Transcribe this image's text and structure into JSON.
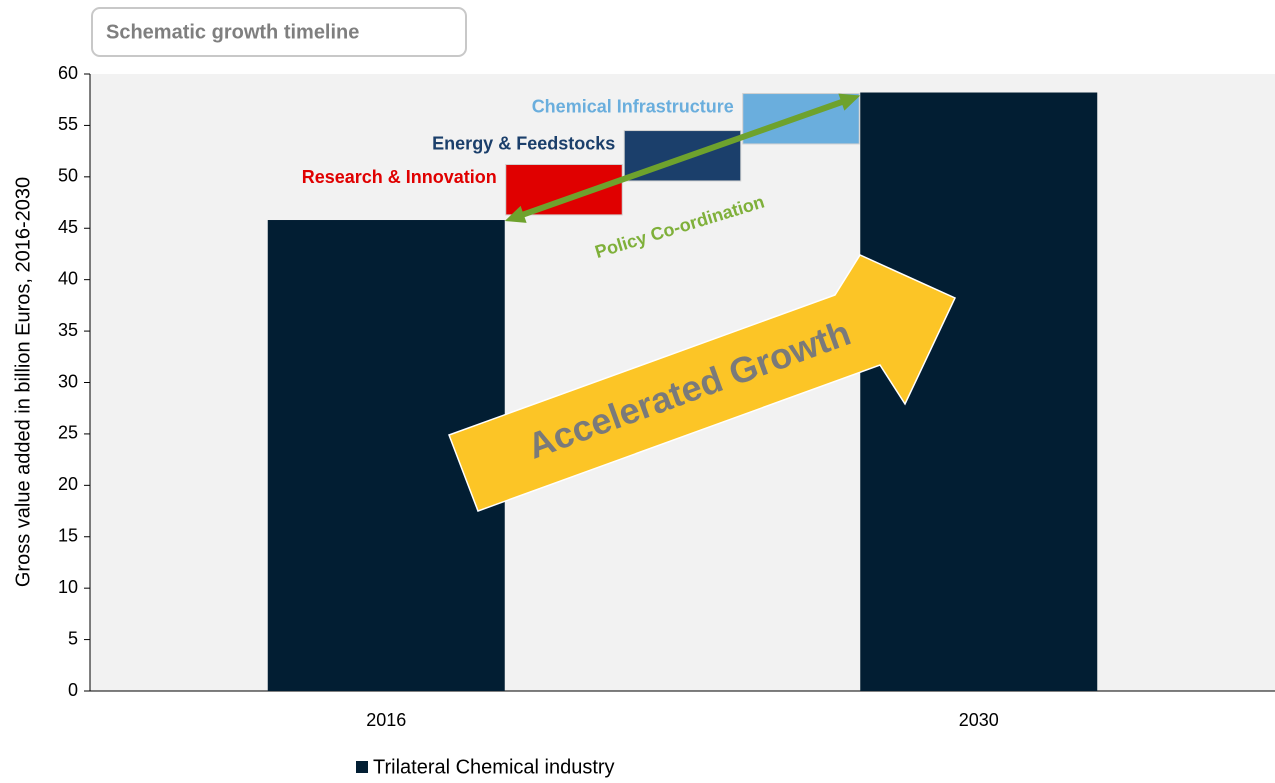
{
  "chart_data": {
    "type": "bar",
    "title": "Schematic growth timeline",
    "y_label": "Gross value added in billion Euros, 2016-2030",
    "categories": [
      "2016",
      "2030"
    ],
    "series": [
      {
        "name": "Trilateral Chemical industry",
        "color": "#021e33",
        "values": [
          45.8,
          58.2
        ]
      }
    ],
    "ranges": [
      {
        "name": "Research & Innovation",
        "color": "#e00000",
        "low": 46.3,
        "high": 51.2
      },
      {
        "name": "Energy & Feedstocks",
        "color": "#1b3f6b",
        "low": 49.6,
        "high": 54.5
      },
      {
        "name": "Chemical Infrastructure",
        "color": "#6aaedd",
        "low": 53.2,
        "high": 58.1
      }
    ],
    "annotations": [
      "Policy Co-ordination",
      "Accelerated Growth"
    ],
    "ylim": [
      0,
      60
    ],
    "yticks": [
      0,
      5,
      10,
      15,
      20,
      25,
      30,
      35,
      40,
      45,
      50,
      55,
      60
    ],
    "legend": "bottom"
  }
}
